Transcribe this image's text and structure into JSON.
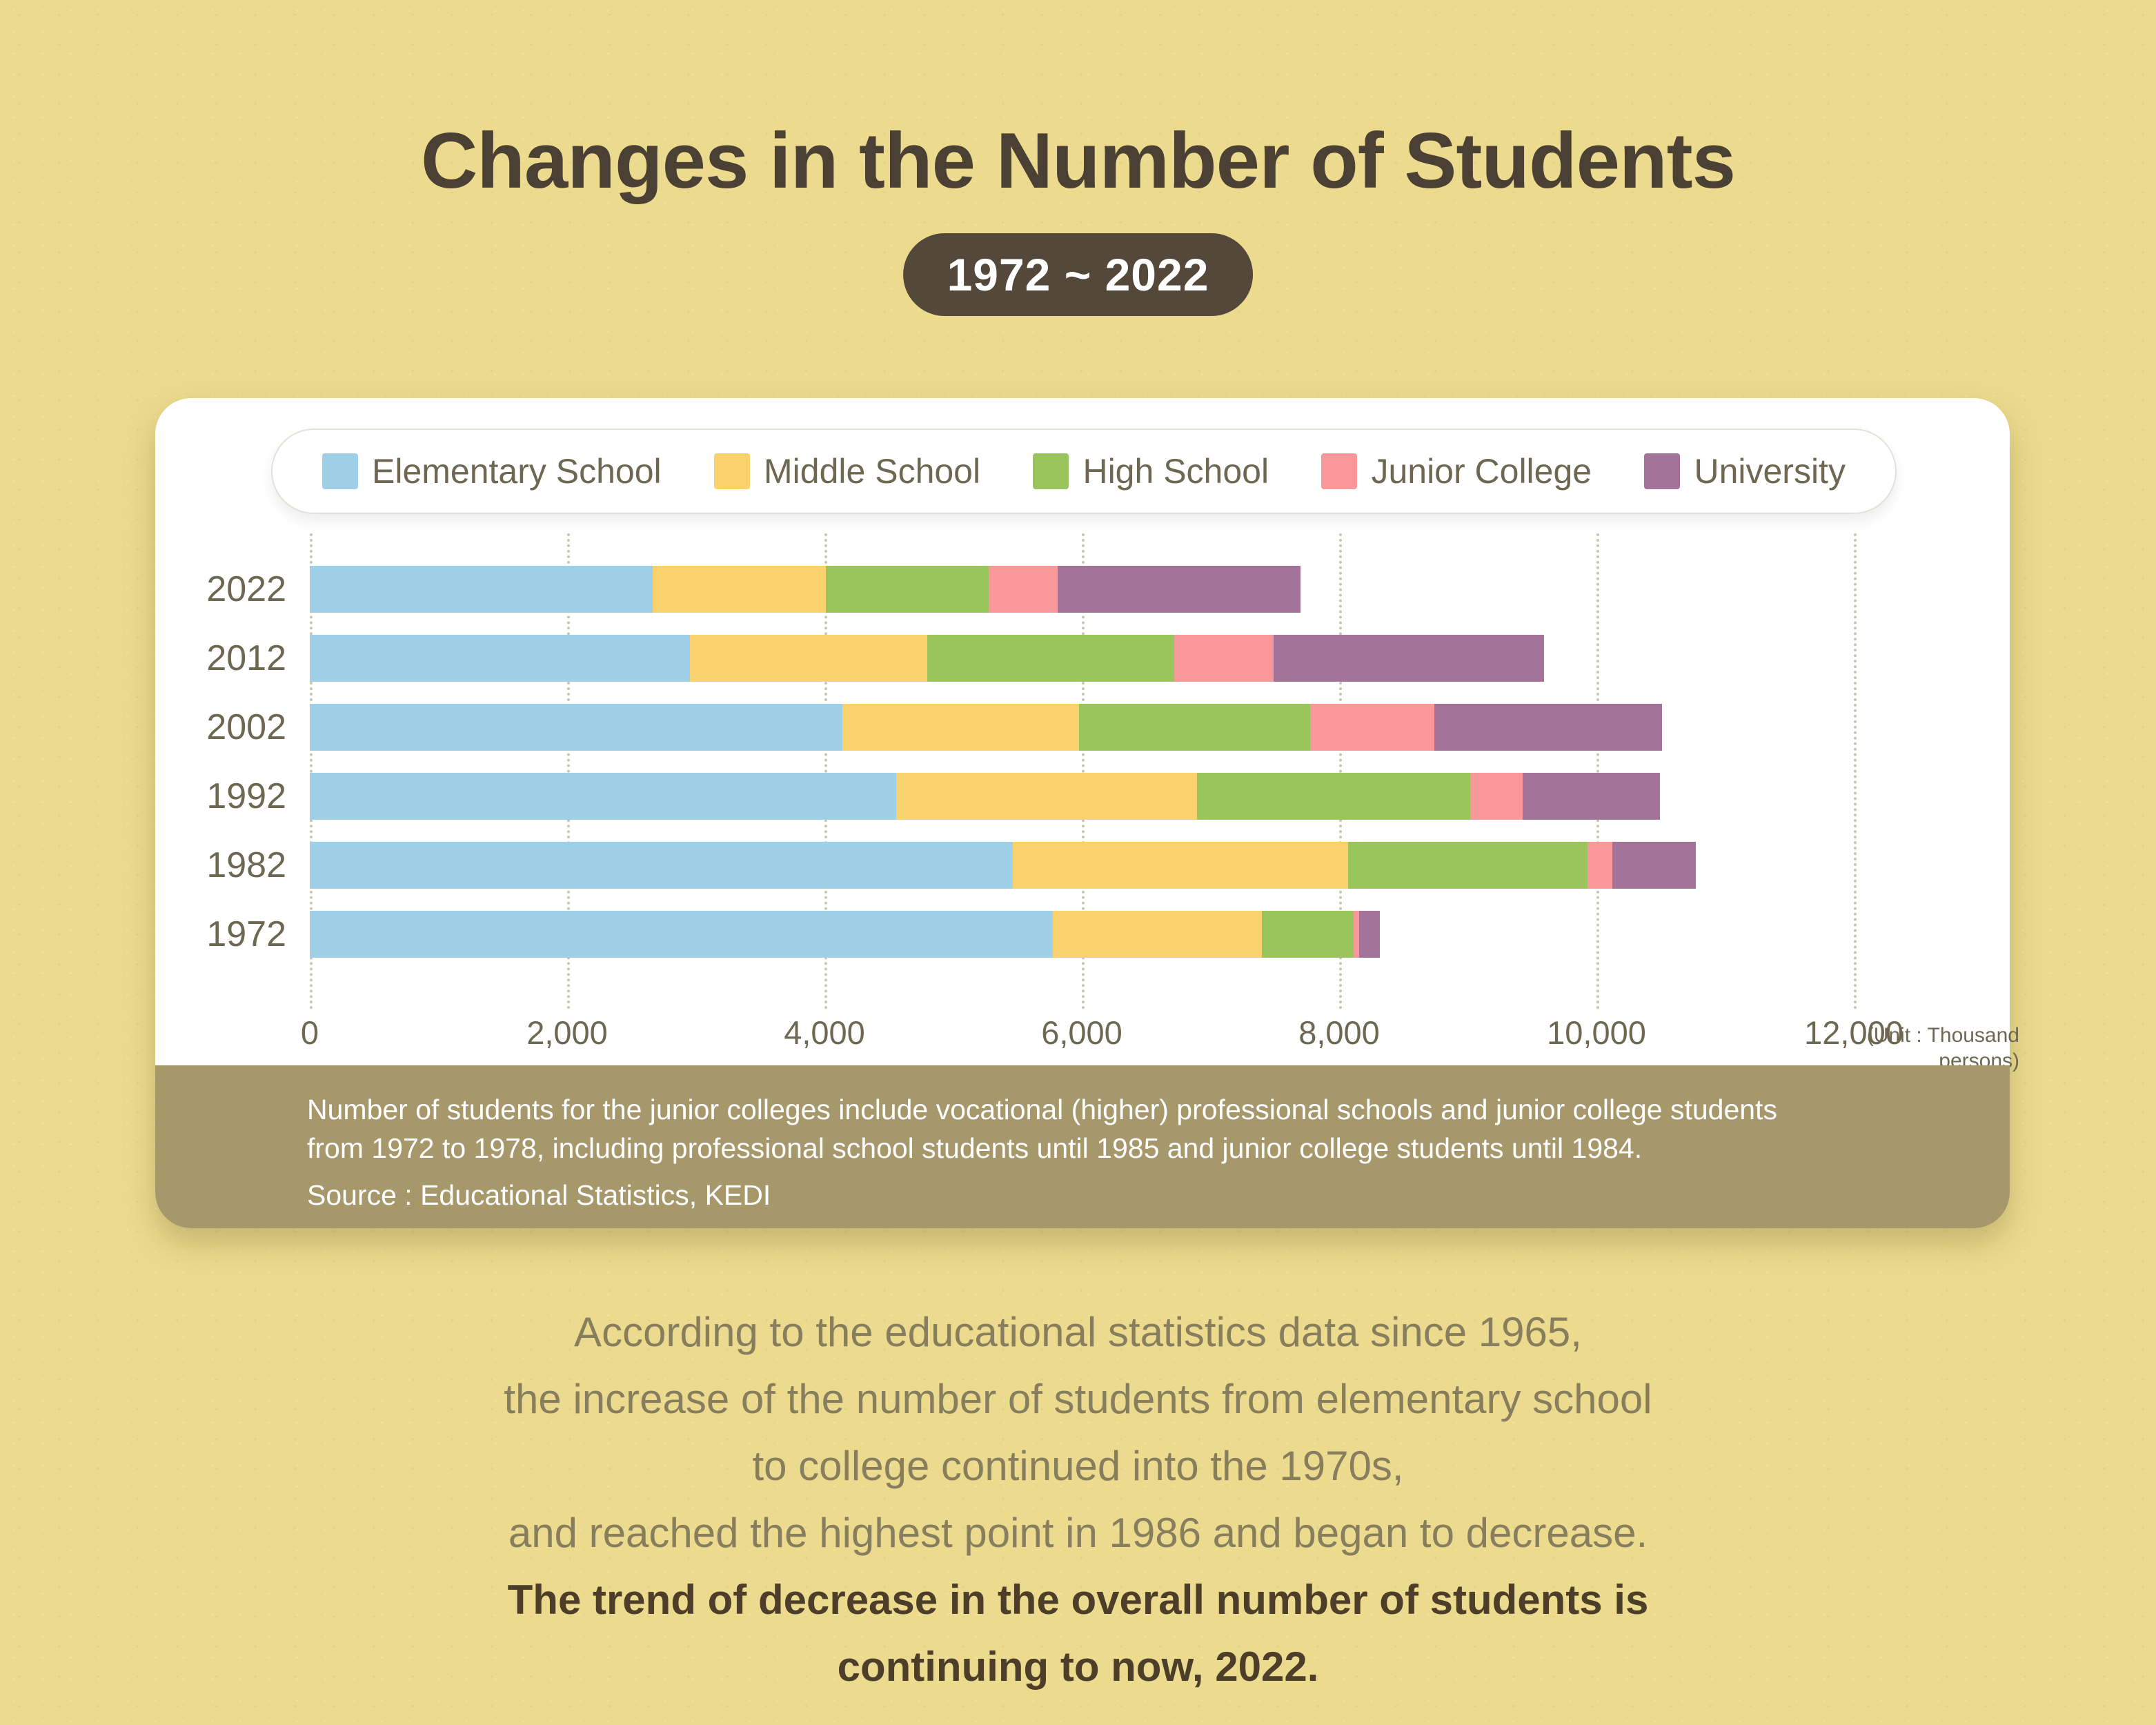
{
  "header": {
    "title": "Changes in the Number of Students",
    "period": "1972 ~ 2022"
  },
  "chart_data": {
    "type": "bar",
    "orientation": "horizontal",
    "stacked": true,
    "categories": [
      "2022",
      "2012",
      "2002",
      "1992",
      "1982",
      "1972"
    ],
    "series": [
      {
        "name": "Elementary School",
        "color": "#9fd0e8",
        "values": [
          2664,
          2952,
          4138,
          4560,
          5465,
          5775
        ]
      },
      {
        "name": "Middle School",
        "color": "#f9d26e",
        "values": [
          1348,
          1849,
          1841,
          2336,
          2603,
          1622
        ]
      },
      {
        "name": "High School",
        "color": "#9ac45c",
        "values": [
          1262,
          1920,
          1796,
          2125,
          1861,
          717
        ]
      },
      {
        "name": "Junior College",
        "color": "#f8989b",
        "values": [
          539,
          770,
          963,
          404,
          197,
          40
        ]
      },
      {
        "name": "University",
        "color": "#a4739a",
        "values": [
          1888,
          2104,
          1772,
          1070,
          647,
          164
        ]
      }
    ],
    "xlim": [
      0,
      12000
    ],
    "x_ticks": [
      0,
      2000,
      4000,
      6000,
      8000,
      10000,
      12000
    ],
    "x_tick_labels": [
      "0",
      "2,000",
      "4,000",
      "6,000",
      "8,000",
      "10,000",
      "12,000"
    ],
    "unit_note": "(Unit : Thousand persons)",
    "grid": "dotted-vertical",
    "legend_position": "top"
  },
  "footnote": {
    "line1": "Number of students for the junior colleges include vocational (higher) professional schools and junior college students",
    "line2": "from 1972 to 1978, including professional school students until 1985 and junior college students until 1984.",
    "source": "Source : Educational Statistics, KEDI"
  },
  "summary": {
    "lines": [
      "According to the educational statistics data since 1965,",
      "the increase of the number of students from elementary school",
      "to college continued into the 1970s,",
      "and reached the highest point in 1986 and began to decrease."
    ],
    "bold_lines": [
      "The trend of decrease in the overall number of students is",
      "continuing to now, 2022."
    ]
  },
  "colors": {
    "background": "#ecdb8e",
    "title_text": "#4a4134",
    "badge_background": "#54483a",
    "badge_text": "#ffffff",
    "card_background": "#ffffff",
    "axis_text": "#6e6751",
    "gridline": "#c9c4b3",
    "footnote_background": "#a6986b",
    "footnote_text": "#ffffff",
    "summary_text": "#867e5d",
    "summary_bold_text": "#4c3e28"
  }
}
